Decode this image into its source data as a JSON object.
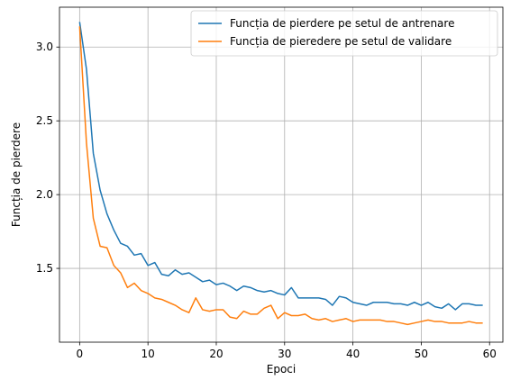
{
  "chart_data": {
    "type": "line",
    "xlabel": "Epoci",
    "ylabel": "Funcția de pierdere",
    "xlim": [
      -2.95,
      61.95
    ],
    "ylim": [
      1.0,
      3.27
    ],
    "xticks": [
      0,
      10,
      20,
      30,
      40,
      50,
      60
    ],
    "yticks": [
      1.5,
      2.0,
      2.5,
      3.0
    ],
    "xtick_labels": [
      "0",
      "10",
      "20",
      "30",
      "40",
      "50",
      "60"
    ],
    "ytick_labels": [
      "1.5",
      "2.0",
      "2.5",
      "3.0"
    ],
    "grid": true,
    "legend_position": "top-right",
    "x": [
      0,
      1,
      2,
      3,
      4,
      5,
      6,
      7,
      8,
      9,
      10,
      11,
      12,
      13,
      14,
      15,
      16,
      17,
      18,
      19,
      20,
      21,
      22,
      23,
      24,
      25,
      26,
      27,
      28,
      29,
      30,
      31,
      32,
      33,
      34,
      35,
      36,
      37,
      38,
      39,
      40,
      41,
      42,
      43,
      44,
      45,
      46,
      47,
      48,
      49,
      50,
      51,
      52,
      53,
      54,
      55,
      56,
      57,
      58,
      59
    ],
    "series": [
      {
        "name": "Funcția de pierdere pe setul de antrenare",
        "color": "#1f77b4",
        "values": [
          3.17,
          2.85,
          2.28,
          2.03,
          1.87,
          1.76,
          1.67,
          1.65,
          1.59,
          1.6,
          1.52,
          1.54,
          1.46,
          1.45,
          1.49,
          1.46,
          1.47,
          1.44,
          1.41,
          1.42,
          1.39,
          1.4,
          1.38,
          1.35,
          1.38,
          1.37,
          1.35,
          1.34,
          1.35,
          1.33,
          1.32,
          1.37,
          1.3,
          1.3,
          1.3,
          1.3,
          1.29,
          1.25,
          1.31,
          1.3,
          1.27,
          1.26,
          1.25,
          1.27,
          1.27,
          1.27,
          1.26,
          1.26,
          1.25,
          1.27,
          1.25,
          1.27,
          1.24,
          1.23,
          1.26,
          1.22,
          1.26,
          1.26,
          1.25,
          1.25
        ]
      },
      {
        "name": "Funcția de pieredere pe setul de validare",
        "color": "#ff7f0e",
        "values": [
          3.14,
          2.35,
          1.84,
          1.65,
          1.64,
          1.52,
          1.47,
          1.37,
          1.4,
          1.35,
          1.33,
          1.3,
          1.29,
          1.27,
          1.25,
          1.22,
          1.2,
          1.3,
          1.22,
          1.21,
          1.22,
          1.22,
          1.17,
          1.16,
          1.21,
          1.19,
          1.19,
          1.23,
          1.25,
          1.16,
          1.2,
          1.18,
          1.18,
          1.19,
          1.16,
          1.15,
          1.16,
          1.14,
          1.15,
          1.16,
          1.14,
          1.15,
          1.15,
          1.15,
          1.15,
          1.14,
          1.14,
          1.13,
          1.12,
          1.13,
          1.14,
          1.15,
          1.14,
          1.14,
          1.13,
          1.13,
          1.13,
          1.14,
          1.13,
          1.13
        ]
      }
    ]
  }
}
